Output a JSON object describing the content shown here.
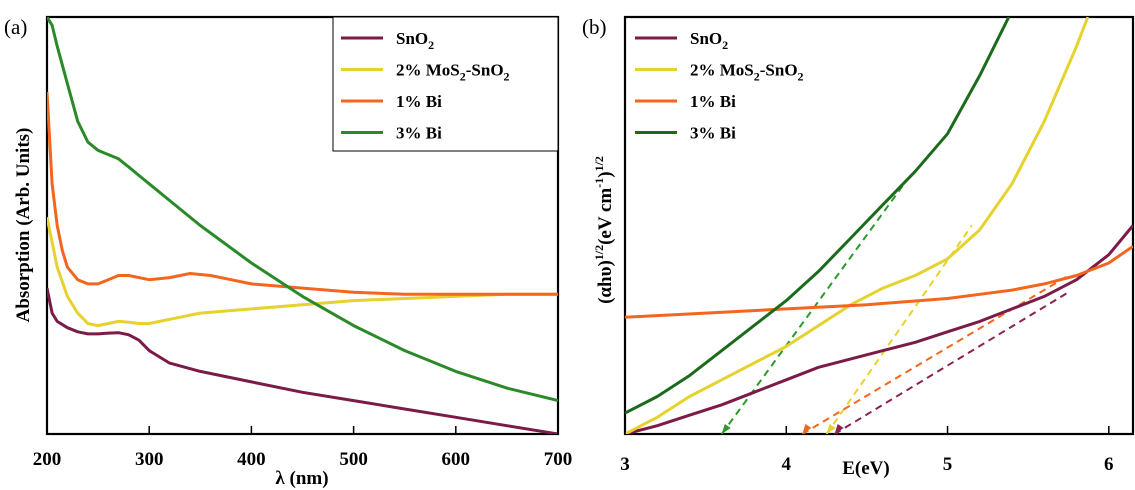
{
  "chart_data": [
    {
      "panel_label": "(a)",
      "type": "line",
      "xlabel": "λ (nm)",
      "ylabel": "Absorption (Arb. Units)",
      "xlim": [
        200,
        700
      ],
      "ylim": [
        0,
        1
      ],
      "x_ticks": [
        "200",
        "300",
        "400",
        "500",
        "600",
        "700"
      ],
      "legend_position": "top-right",
      "series": [
        {
          "name": "SnO2",
          "legend": [
            "SnO",
            "2",
            ""
          ],
          "color": "#7b1b47",
          "x": [
            200,
            205,
            210,
            220,
            230,
            240,
            250,
            260,
            270,
            280,
            290,
            300,
            320,
            350,
            400,
            450,
            500,
            550,
            600,
            650,
            700
          ],
          "y": [
            0.35,
            0.29,
            0.27,
            0.255,
            0.245,
            0.24,
            0.24,
            0.242,
            0.243,
            0.238,
            0.225,
            0.2,
            0.17,
            0.15,
            0.125,
            0.1,
            0.08,
            0.06,
            0.04,
            0.02,
            0.0
          ]
        },
        {
          "name": "2% MoS2-SnO2",
          "legend": [
            "2% MoS",
            "2",
            "-SnO"
          ],
          "legend_sub2": "2",
          "color": "#e6d22e",
          "x": [
            200,
            210,
            220,
            230,
            240,
            250,
            260,
            270,
            280,
            290,
            300,
            320,
            350,
            400,
            450,
            500,
            550,
            600,
            650,
            700
          ],
          "y": [
            0.52,
            0.4,
            0.33,
            0.29,
            0.265,
            0.26,
            0.265,
            0.27,
            0.268,
            0.265,
            0.265,
            0.275,
            0.29,
            0.3,
            0.31,
            0.32,
            0.325,
            0.33,
            0.335,
            0.335
          ]
        },
        {
          "name": "1% Bi",
          "legend": [
            "1% Bi",
            "",
            ""
          ],
          "color": "#f2661e",
          "x": [
            200,
            205,
            210,
            215,
            220,
            230,
            240,
            250,
            260,
            270,
            280,
            300,
            320,
            340,
            360,
            380,
            400,
            450,
            500,
            550,
            600,
            650,
            700
          ],
          "y": [
            0.82,
            0.6,
            0.5,
            0.44,
            0.4,
            0.37,
            0.36,
            0.36,
            0.37,
            0.38,
            0.38,
            0.37,
            0.375,
            0.385,
            0.38,
            0.37,
            0.36,
            0.35,
            0.34,
            0.335,
            0.335,
            0.335,
            0.335
          ]
        },
        {
          "name": "3% Bi",
          "legend": [
            "3% Bi",
            "",
            ""
          ],
          "color": "#2a8a2a",
          "x": [
            200,
            205,
            210,
            220,
            230,
            240,
            250,
            260,
            270,
            280,
            290,
            300,
            320,
            350,
            400,
            450,
            500,
            550,
            600,
            650,
            700
          ],
          "y": [
            1.0,
            0.98,
            0.93,
            0.84,
            0.75,
            0.7,
            0.68,
            0.67,
            0.66,
            0.64,
            0.62,
            0.6,
            0.56,
            0.5,
            0.41,
            0.33,
            0.26,
            0.2,
            0.15,
            0.11,
            0.08
          ]
        }
      ]
    },
    {
      "panel_label": "(b)",
      "type": "line",
      "xlabel": "E(eV)",
      "ylabel": [
        "(αhυ)",
        "1/2",
        "(eV cm",
        "-1",
        ")",
        "1/2"
      ],
      "xlim": [
        3,
        6.15
      ],
      "ylim": [
        0,
        1
      ],
      "x_ticks": [
        "3",
        "4",
        "5",
        "6"
      ],
      "legend_position": "top-left",
      "series": [
        {
          "name": "SnO2",
          "legend": [
            "SnO",
            "2",
            ""
          ],
          "color": "#7b1b47",
          "x": [
            3.0,
            3.2,
            3.4,
            3.6,
            3.8,
            4.0,
            4.2,
            4.4,
            4.6,
            4.8,
            5.0,
            5.2,
            5.4,
            5.6,
            5.8,
            6.0,
            6.15
          ],
          "y": [
            0.0,
            0.02,
            0.045,
            0.07,
            0.1,
            0.13,
            0.16,
            0.18,
            0.2,
            0.22,
            0.245,
            0.27,
            0.3,
            0.33,
            0.37,
            0.43,
            0.5
          ]
        },
        {
          "name": "2% MoS2-SnO2",
          "legend": [
            "2% MoS",
            "2",
            "-SnO"
          ],
          "legend_sub2": "2",
          "color": "#e6d22e",
          "x": [
            3.0,
            3.2,
            3.4,
            3.6,
            3.8,
            4.0,
            4.2,
            4.4,
            4.6,
            4.8,
            5.0,
            5.2,
            5.4,
            5.6,
            5.8,
            5.87
          ],
          "y": [
            0.0,
            0.04,
            0.09,
            0.13,
            0.17,
            0.21,
            0.26,
            0.31,
            0.35,
            0.38,
            0.42,
            0.49,
            0.6,
            0.75,
            0.93,
            1.0
          ]
        },
        {
          "name": "1% Bi",
          "legend": [
            "1% Bi",
            "",
            ""
          ],
          "color": "#f2661e",
          "x": [
            3.0,
            3.5,
            4.0,
            4.5,
            5.0,
            5.2,
            5.4,
            5.6,
            5.8,
            6.0,
            6.15
          ],
          "y": [
            0.28,
            0.29,
            0.3,
            0.31,
            0.325,
            0.335,
            0.345,
            0.36,
            0.38,
            0.41,
            0.45
          ]
        },
        {
          "name": "3% Bi",
          "legend": [
            "3% Bi",
            "",
            ""
          ],
          "color": "#1c6b1c",
          "x": [
            3.0,
            3.2,
            3.4,
            3.6,
            3.8,
            4.0,
            4.2,
            4.4,
            4.6,
            4.8,
            5.0,
            5.2,
            5.38
          ],
          "y": [
            0.05,
            0.09,
            0.14,
            0.2,
            0.26,
            0.32,
            0.39,
            0.47,
            0.55,
            0.63,
            0.72,
            0.86,
            1.0
          ]
        }
      ],
      "extrapolation_lines": [
        {
          "series": "3% Bi",
          "color": "#2a9a2a",
          "x": [
            3.6,
            4.75
          ],
          "y": [
            0.0,
            0.61
          ]
        },
        {
          "series": "2% MoS2-SnO2",
          "color": "#e6d22e",
          "x": [
            4.25,
            5.15
          ],
          "y": [
            0.0,
            0.5
          ]
        },
        {
          "series": "1% Bi",
          "color": "#f2661e",
          "x": [
            4.1,
            5.75
          ],
          "y": [
            0.0,
            0.38
          ]
        },
        {
          "series": "SnO2",
          "color": "#8b2252",
          "x": [
            4.3,
            5.75
          ],
          "y": [
            0.0,
            0.34
          ]
        }
      ]
    }
  ]
}
